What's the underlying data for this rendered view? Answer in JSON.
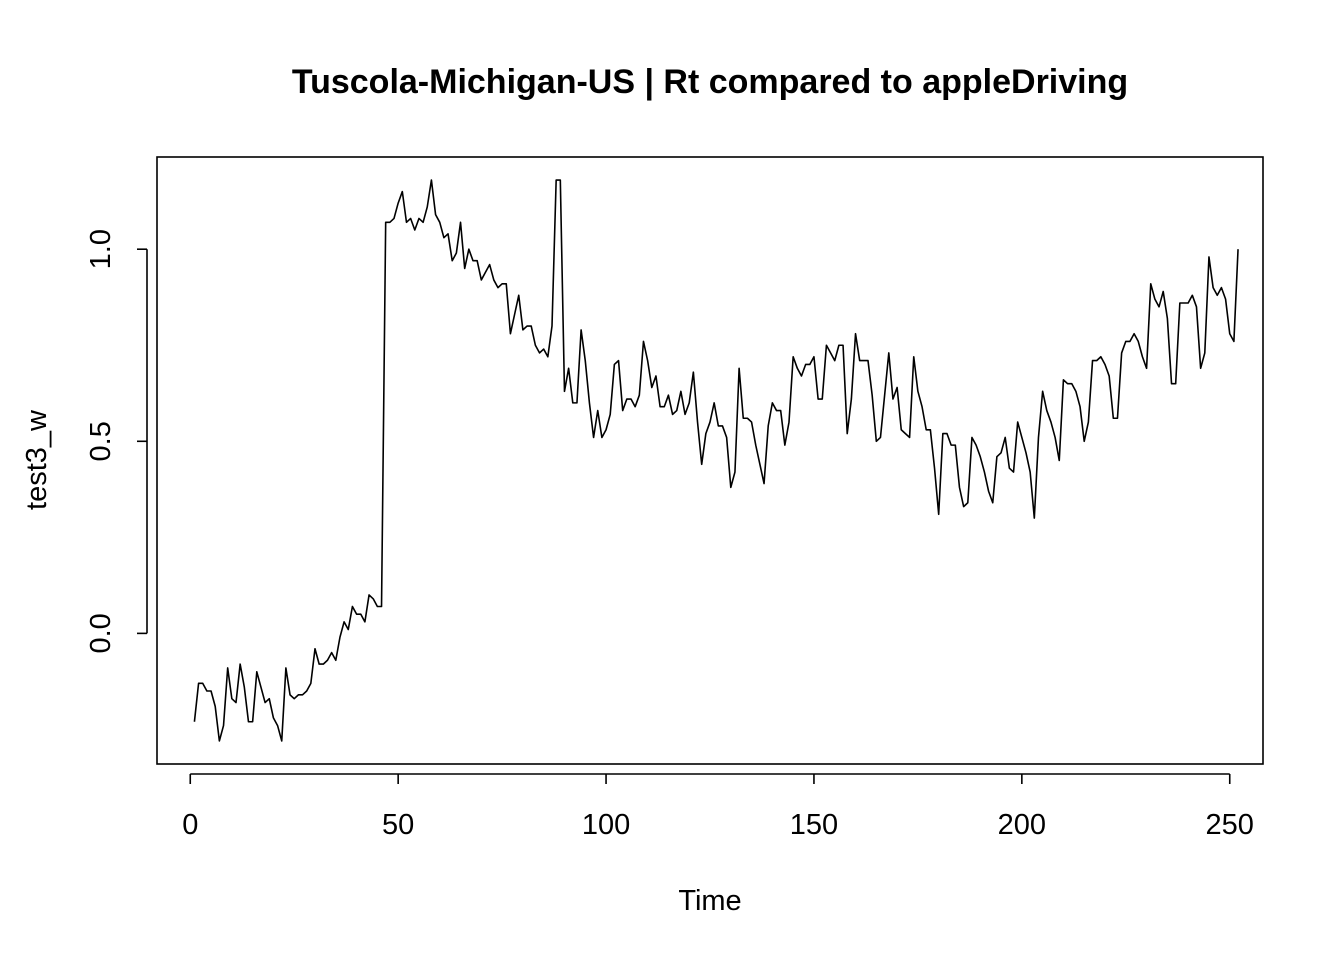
{
  "chart_data": {
    "type": "line",
    "title": "Tuscola-Michigan-US | Rt compared to appleDriving",
    "xlabel": "Time",
    "ylabel": "test3_w",
    "xlim": [
      -8,
      258
    ],
    "ylim": [
      -0.34,
      1.24
    ],
    "x_ticks": [
      0,
      50,
      100,
      150,
      200,
      250
    ],
    "x_tick_labels": [
      "0",
      "50",
      "100",
      "150",
      "200",
      "250"
    ],
    "y_ticks": [
      0.0,
      0.5,
      1.0
    ],
    "y_tick_labels": [
      "0.0",
      "0.5",
      "1.0"
    ],
    "grid": false,
    "legend": "none",
    "line_color": "#000000",
    "series": [
      {
        "x_start": 1,
        "x_step": 1,
        "values": [
          -0.23,
          -0.13,
          -0.13,
          -0.15,
          -0.15,
          -0.19,
          -0.28,
          -0.24,
          -0.09,
          -0.17,
          -0.18,
          -0.08,
          -0.14,
          -0.23,
          -0.23,
          -0.1,
          -0.14,
          -0.18,
          -0.17,
          -0.22,
          -0.24,
          -0.28,
          -0.09,
          -0.16,
          -0.17,
          -0.16,
          -0.16,
          -0.15,
          -0.13,
          -0.04,
          -0.08,
          -0.08,
          -0.07,
          -0.05,
          -0.07,
          -0.01,
          0.03,
          0.01,
          0.07,
          0.05,
          0.05,
          0.03,
          0.1,
          0.09,
          0.07,
          0.07,
          1.07,
          1.07,
          1.08,
          1.12,
          1.15,
          1.07,
          1.08,
          1.05,
          1.08,
          1.07,
          1.11,
          1.18,
          1.09,
          1.07,
          1.03,
          1.04,
          0.97,
          0.99,
          1.07,
          0.95,
          1.0,
          0.97,
          0.97,
          0.92,
          0.94,
          0.96,
          0.92,
          0.9,
          0.91,
          0.91,
          0.78,
          0.83,
          0.88,
          0.79,
          0.8,
          0.8,
          0.75,
          0.73,
          0.74,
          0.72,
          0.8,
          1.18,
          1.18,
          0.63,
          0.69,
          0.6,
          0.6,
          0.79,
          0.71,
          0.6,
          0.51,
          0.58,
          0.51,
          0.53,
          0.57,
          0.7,
          0.71,
          0.58,
          0.61,
          0.61,
          0.59,
          0.62,
          0.76,
          0.71,
          0.64,
          0.67,
          0.59,
          0.59,
          0.62,
          0.57,
          0.58,
          0.63,
          0.57,
          0.6,
          0.68,
          0.55,
          0.44,
          0.52,
          0.55,
          0.6,
          0.54,
          0.54,
          0.51,
          0.38,
          0.42,
          0.69,
          0.56,
          0.56,
          0.55,
          0.49,
          0.44,
          0.39,
          0.54,
          0.6,
          0.58,
          0.58,
          0.49,
          0.55,
          0.72,
          0.69,
          0.67,
          0.7,
          0.7,
          0.72,
          0.61,
          0.61,
          0.75,
          0.73,
          0.71,
          0.75,
          0.75,
          0.52,
          0.61,
          0.78,
          0.71,
          0.71,
          0.71,
          0.62,
          0.5,
          0.51,
          0.62,
          0.73,
          0.61,
          0.64,
          0.53,
          0.52,
          0.51,
          0.72,
          0.63,
          0.59,
          0.53,
          0.53,
          0.43,
          0.31,
          0.52,
          0.52,
          0.49,
          0.49,
          0.38,
          0.33,
          0.34,
          0.51,
          0.49,
          0.46,
          0.42,
          0.37,
          0.34,
          0.46,
          0.47,
          0.51,
          0.43,
          0.42,
          0.55,
          0.51,
          0.47,
          0.42,
          0.3,
          0.51,
          0.63,
          0.58,
          0.55,
          0.51,
          0.45,
          0.66,
          0.65,
          0.65,
          0.63,
          0.59,
          0.5,
          0.55,
          0.71,
          0.71,
          0.72,
          0.7,
          0.67,
          0.56,
          0.56,
          0.73,
          0.76,
          0.76,
          0.78,
          0.76,
          0.72,
          0.69,
          0.91,
          0.87,
          0.85,
          0.89,
          0.82,
          0.65,
          0.65,
          0.86,
          0.86,
          0.86,
          0.88,
          0.85,
          0.69,
          0.73,
          0.98,
          0.9,
          0.88,
          0.9,
          0.87,
          0.78,
          0.76,
          1.0
        ]
      }
    ]
  }
}
